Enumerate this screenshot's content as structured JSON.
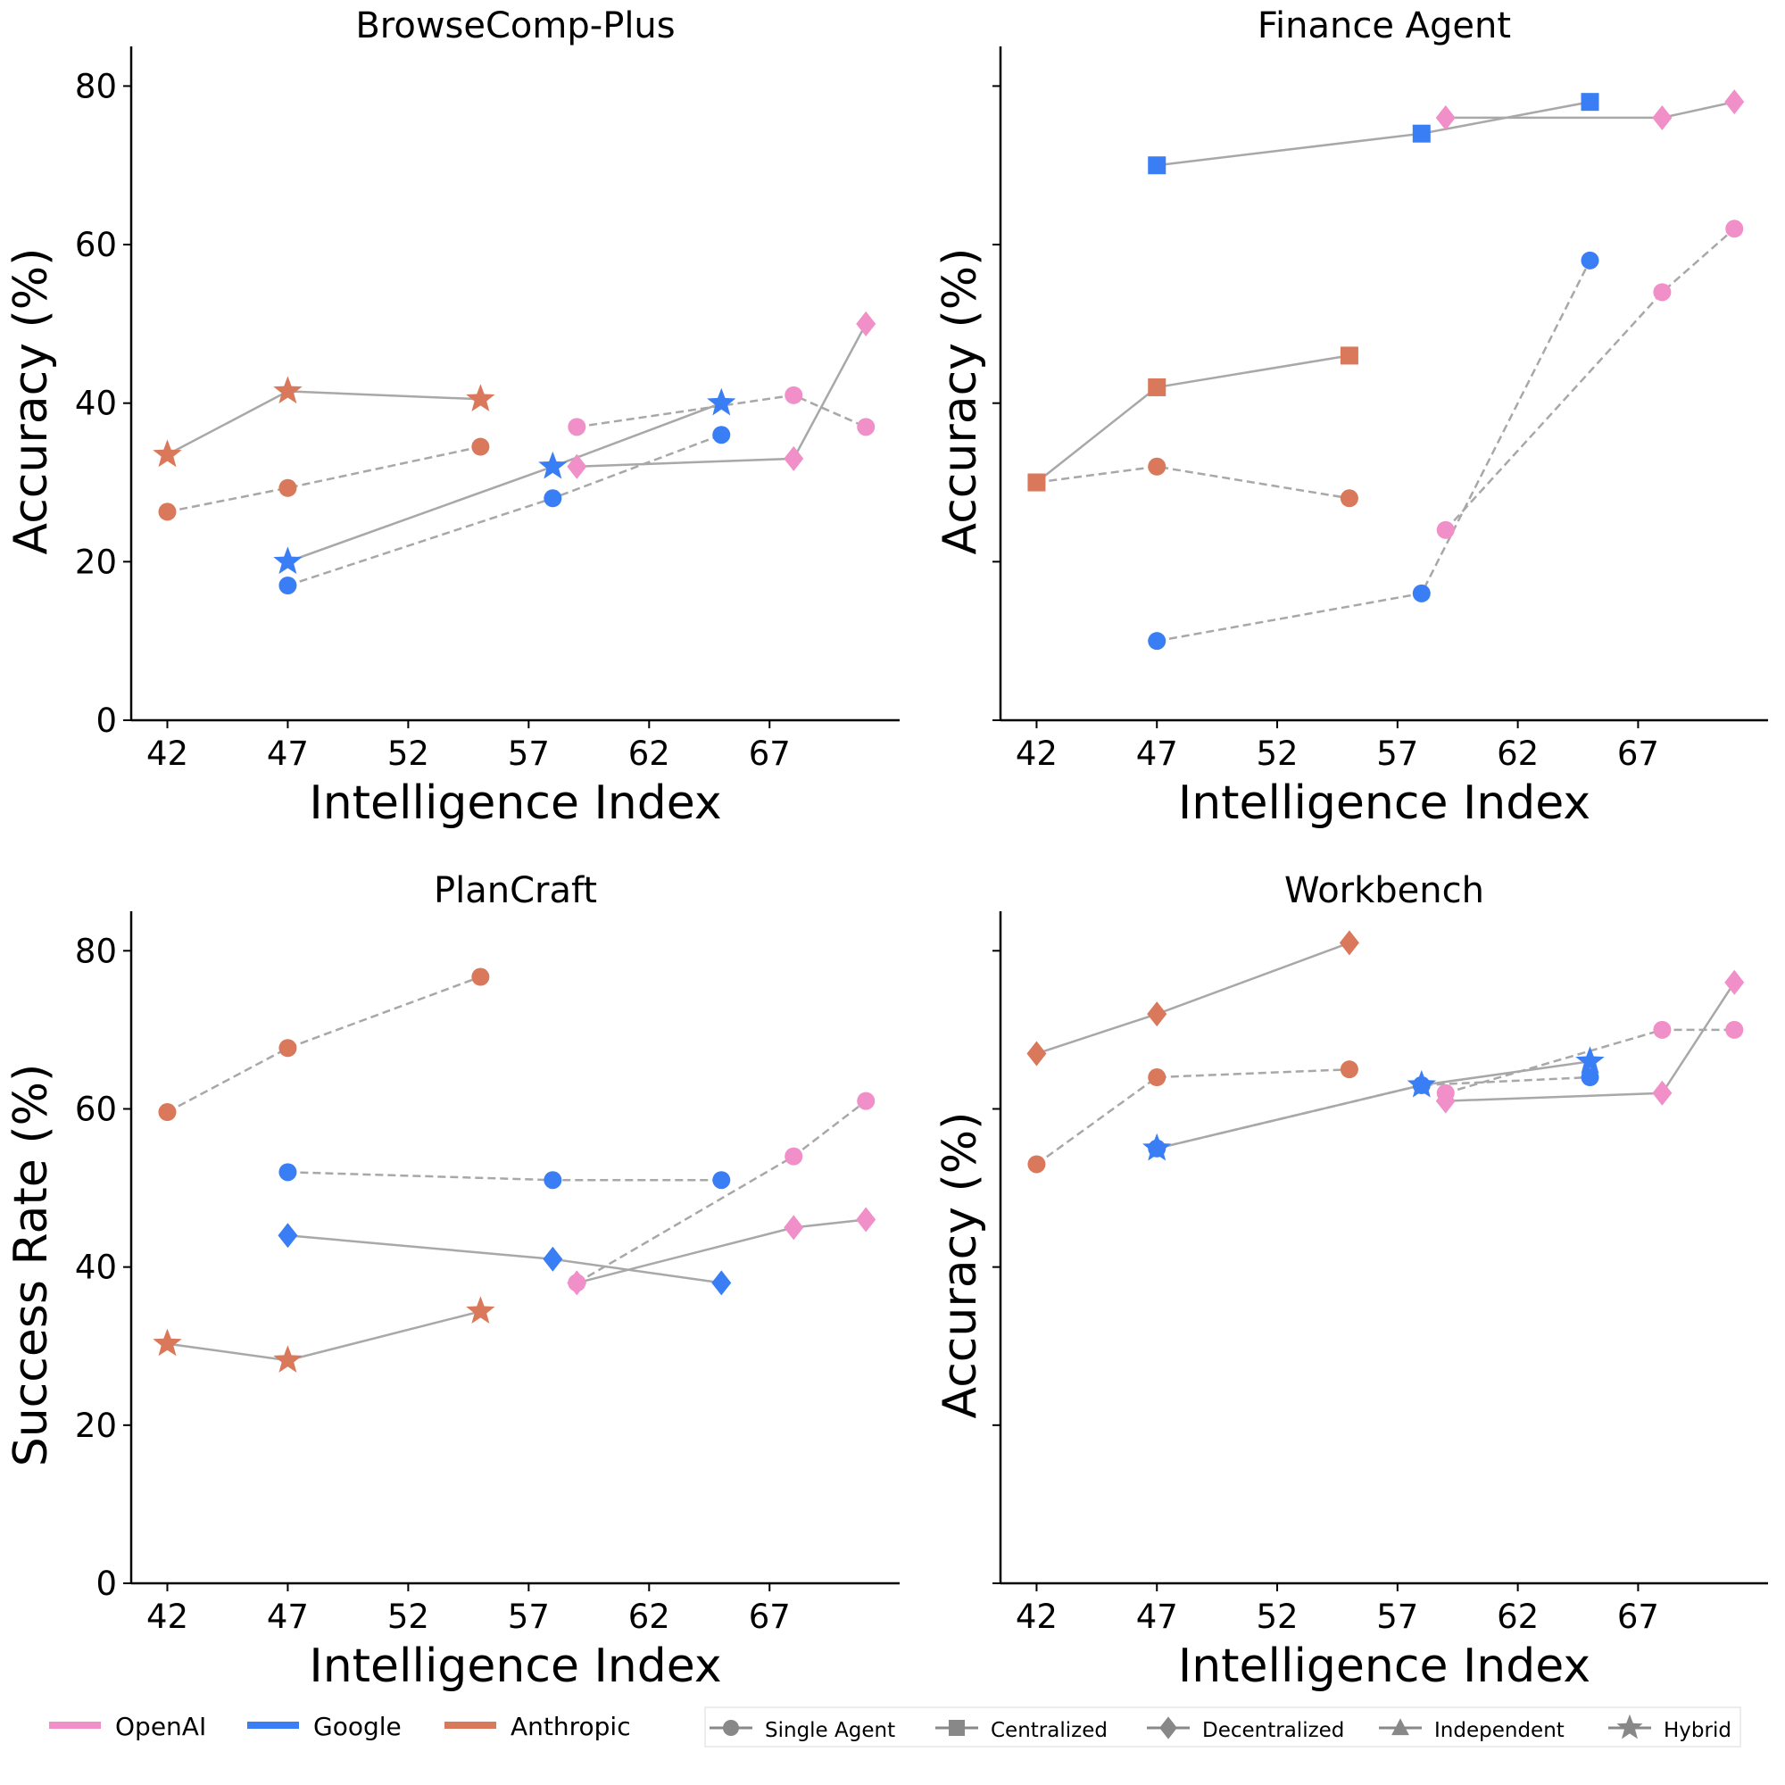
{
  "colors": {
    "OpenAI": "#f08fc8",
    "Google": "#3a7ef5",
    "Anthropic": "#d9785a",
    "line": "#a8a8a8",
    "marker_legend": "#888888"
  },
  "legend": {
    "providers": [
      "OpenAI",
      "Google",
      "Anthropic"
    ],
    "architectures": [
      {
        "name": "Single Agent",
        "marker": "circle",
        "line": "dashed"
      },
      {
        "name": "Centralized",
        "marker": "square",
        "line": "solid"
      },
      {
        "name": "Decentralized",
        "marker": "diamond",
        "line": "solid"
      },
      {
        "name": "Independent",
        "marker": "triangle",
        "line": "solid"
      },
      {
        "name": "Hybrid",
        "marker": "star",
        "line": "solid"
      }
    ]
  },
  "chart_data": [
    {
      "type": "line",
      "title": "BrowseComp-Plus",
      "xlabel": "Intelligence Index",
      "ylabel": "Accuracy (%)",
      "xticks": [
        42,
        47,
        52,
        57,
        62,
        67
      ],
      "yticks": [
        0,
        20,
        40,
        60,
        80
      ],
      "show_ytick_labels": true,
      "xlim": [
        40.5,
        72.4
      ],
      "ylim": [
        0,
        85
      ],
      "grid": false,
      "series": [
        {
          "provider": "Anthropic",
          "architecture": "Hybrid",
          "x": [
            42,
            47,
            55
          ],
          "y": [
            33.5,
            41.5,
            40.5
          ]
        },
        {
          "provider": "Anthropic",
          "architecture": "Single Agent",
          "x": [
            42,
            47,
            55
          ],
          "y": [
            26.3,
            29.3,
            34.5
          ]
        },
        {
          "provider": "Google",
          "architecture": "Hybrid",
          "x": [
            47,
            58,
            65
          ],
          "y": [
            20,
            32,
            40
          ]
        },
        {
          "provider": "Google",
          "architecture": "Single Agent",
          "x": [
            47,
            58,
            65
          ],
          "y": [
            17,
            28,
            36
          ]
        },
        {
          "provider": "OpenAI",
          "architecture": "Single Agent",
          "x": [
            59,
            68,
            71
          ],
          "y": [
            37,
            41,
            37
          ]
        },
        {
          "provider": "OpenAI",
          "architecture": "Decentralized",
          "x": [
            59,
            68,
            71
          ],
          "y": [
            32,
            33,
            50
          ]
        }
      ]
    },
    {
      "type": "line",
      "title": "Finance Agent",
      "xlabel": "Intelligence Index",
      "ylabel": "Accuracy (%)",
      "xticks": [
        42,
        47,
        52,
        57,
        62,
        67
      ],
      "yticks": [
        0,
        20,
        40,
        60,
        80
      ],
      "show_ytick_labels": false,
      "xlim": [
        40.5,
        72.4
      ],
      "ylim": [
        0,
        85
      ],
      "grid": false,
      "series": [
        {
          "provider": "Google",
          "architecture": "Centralized",
          "x": [
            47,
            58,
            65
          ],
          "y": [
            70,
            74,
            78
          ]
        },
        {
          "provider": "OpenAI",
          "architecture": "Decentralized",
          "x": [
            59,
            68,
            71
          ],
          "y": [
            76,
            76,
            78
          ]
        },
        {
          "provider": "Google",
          "architecture": "Single Agent",
          "x": [
            47,
            58,
            65
          ],
          "y": [
            10,
            16,
            58
          ]
        },
        {
          "provider": "OpenAI",
          "architecture": "Single Agent",
          "x": [
            59,
            68,
            71
          ],
          "y": [
            24,
            54,
            62
          ]
        },
        {
          "provider": "Anthropic",
          "architecture": "Single Agent",
          "x": [
            42,
            47,
            55
          ],
          "y": [
            30,
            32,
            28
          ]
        },
        {
          "provider": "Anthropic",
          "architecture": "Centralized",
          "x": [
            42,
            47,
            55
          ],
          "y": [
            30,
            42,
            46
          ]
        }
      ]
    },
    {
      "type": "line",
      "title": "PlanCraft",
      "xlabel": "Intelligence Index",
      "ylabel": "Success Rate (%)",
      "xticks": [
        42,
        47,
        52,
        57,
        62,
        67
      ],
      "yticks": [
        0,
        20,
        40,
        60,
        80
      ],
      "show_ytick_labels": true,
      "xlim": [
        40.5,
        72.4
      ],
      "ylim": [
        0,
        85
      ],
      "grid": false,
      "series": [
        {
          "provider": "Anthropic",
          "architecture": "Single Agent",
          "x": [
            42,
            47,
            55
          ],
          "y": [
            59.6,
            67.7,
            76.7
          ]
        },
        {
          "provider": "Google",
          "architecture": "Single Agent",
          "x": [
            47,
            58,
            65
          ],
          "y": [
            52,
            51,
            51
          ]
        },
        {
          "provider": "Google",
          "architecture": "Decentralized",
          "x": [
            47,
            58,
            65
          ],
          "y": [
            44,
            41,
            38
          ]
        },
        {
          "provider": "OpenAI",
          "architecture": "Single Agent",
          "x": [
            59,
            68,
            71
          ],
          "y": [
            38,
            54,
            61
          ]
        },
        {
          "provider": "OpenAI",
          "architecture": "Decentralized",
          "x": [
            59,
            68,
            71
          ],
          "y": [
            38,
            45,
            46
          ]
        },
        {
          "provider": "Anthropic",
          "architecture": "Hybrid",
          "x": [
            42,
            47,
            55
          ],
          "y": [
            30.3,
            28.2,
            34.4
          ]
        }
      ]
    },
    {
      "type": "line",
      "title": "Workbench",
      "xlabel": "Intelligence Index",
      "ylabel": "Accuracy (%)",
      "xticks": [
        42,
        47,
        52,
        57,
        62,
        67
      ],
      "yticks": [
        0,
        20,
        40,
        60,
        80
      ],
      "show_ytick_labels": false,
      "xlim": [
        40.5,
        72.4
      ],
      "ylim": [
        0,
        85
      ],
      "grid": false,
      "series": [
        {
          "provider": "Anthropic",
          "architecture": "Decentralized",
          "x": [
            42,
            47,
            55
          ],
          "y": [
            67,
            72,
            81
          ]
        },
        {
          "provider": "Anthropic",
          "architecture": "Single Agent",
          "x": [
            42,
            47,
            55
          ],
          "y": [
            53,
            64,
            65
          ]
        },
        {
          "provider": "Google",
          "architecture": "Single Agent",
          "x": [
            47,
            58,
            65
          ],
          "y": [
            55,
            63,
            64
          ]
        },
        {
          "provider": "Google",
          "architecture": "Hybrid",
          "x": [
            47,
            58,
            65
          ],
          "y": [
            55,
            63,
            66
          ]
        },
        {
          "provider": "OpenAI",
          "architecture": "Single Agent",
          "x": [
            59,
            68,
            71
          ],
          "y": [
            62,
            70,
            70
          ]
        },
        {
          "provider": "OpenAI",
          "architecture": "Decentralized",
          "x": [
            59,
            68,
            71
          ],
          "y": [
            61,
            62,
            76
          ]
        }
      ]
    }
  ]
}
